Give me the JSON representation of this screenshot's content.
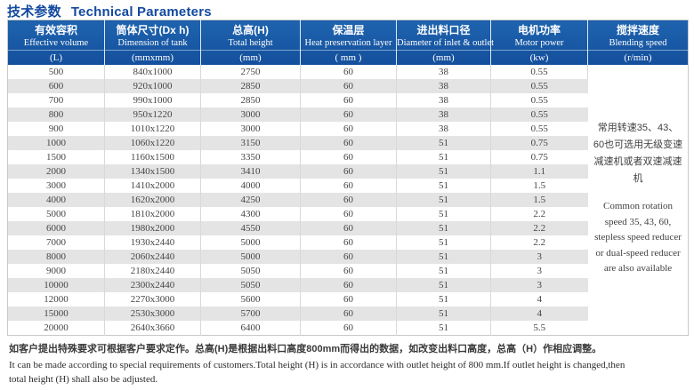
{
  "title": {
    "zh": "技术参数",
    "en": "Technical Parameters"
  },
  "colors": {
    "title_blue": "#1449a0",
    "header_blue": "#15549e",
    "stripe_gray": "#e4e4e4",
    "body_text": "#454545"
  },
  "table": {
    "columns": [
      {
        "zh": "有效容积",
        "en": "Effective volume",
        "unit": "(L)"
      },
      {
        "zh": "筒体尺寸(Dx h)",
        "en": "Dimension of tank",
        "unit": "(mmxmm)"
      },
      {
        "zh": "总高(H)",
        "en": "Total height",
        "unit": "(mm)"
      },
      {
        "zh": "保温层",
        "en": "Heat preservation layer",
        "unit": "( mm )"
      },
      {
        "zh": "进出料口径",
        "en": "Diameter of inlet & outlet",
        "unit": "(mm)"
      },
      {
        "zh": "电机功率",
        "en": "Motor power",
        "unit": "(kw)"
      },
      {
        "zh": "搅拌速度",
        "en": "Blending speed",
        "unit": "(r/min)"
      }
    ],
    "rows": [
      [
        "500",
        "840x1000",
        "2750",
        "60",
        "38",
        "0.55"
      ],
      [
        "600",
        "920x1000",
        "2850",
        "60",
        "38",
        "0.55"
      ],
      [
        "700",
        "990x1000",
        "2850",
        "60",
        "38",
        "0.55"
      ],
      [
        "800",
        "950x1220",
        "3000",
        "60",
        "38",
        "0.55"
      ],
      [
        "900",
        "1010x1220",
        "3000",
        "60",
        "38",
        "0.55"
      ],
      [
        "1000",
        "1060x1220",
        "3150",
        "60",
        "51",
        "0.75"
      ],
      [
        "1500",
        "1160x1500",
        "3350",
        "60",
        "51",
        "0.75"
      ],
      [
        "2000",
        "1340x1500",
        "3410",
        "60",
        "51",
        "1.1"
      ],
      [
        "3000",
        "1410x2000",
        "4000",
        "60",
        "51",
        "1.5"
      ],
      [
        "4000",
        "1620x2000",
        "4250",
        "60",
        "51",
        "1.5"
      ],
      [
        "5000",
        "1810x2000",
        "4300",
        "60",
        "51",
        "2.2"
      ],
      [
        "6000",
        "1980x2000",
        "4550",
        "60",
        "51",
        "2.2"
      ],
      [
        "7000",
        "1930x2440",
        "5000",
        "60",
        "51",
        "2.2"
      ],
      [
        "8000",
        "2060x2440",
        "5000",
        "60",
        "51",
        "3"
      ],
      [
        "9000",
        "2180x2440",
        "5050",
        "60",
        "51",
        "3"
      ],
      [
        "10000",
        "2300x2440",
        "5050",
        "60",
        "51",
        "3"
      ],
      [
        "12000",
        "2270x3000",
        "5600",
        "60",
        "51",
        "4"
      ],
      [
        "15000",
        "2530x3000",
        "5700",
        "60",
        "51",
        "4"
      ],
      [
        "20000",
        "2640x3660",
        "6400",
        "60",
        "51",
        "5.5"
      ]
    ],
    "blending_speed_note": {
      "zh": "常用转速35、43、60也可选用无级变速减速机或者双速减速机",
      "en": "Common rotation speed 35, 43, 60, stepless speed reducer or dual-speed reducer are also available"
    }
  },
  "footnote": {
    "zh": "如客户提出特殊要求可根据客户要求定作。总高(H)是根据出料口高度800mm而得出的数据，如改变出料口高度，总高（H）作相应调整。",
    "en_line1": "It can be made according to special requirements of customers.Total height (H) is in accordance with outlet height of 800 mm.If outlet height is changed,then",
    "en_line2": "total height (H) shall also be adjusted."
  }
}
